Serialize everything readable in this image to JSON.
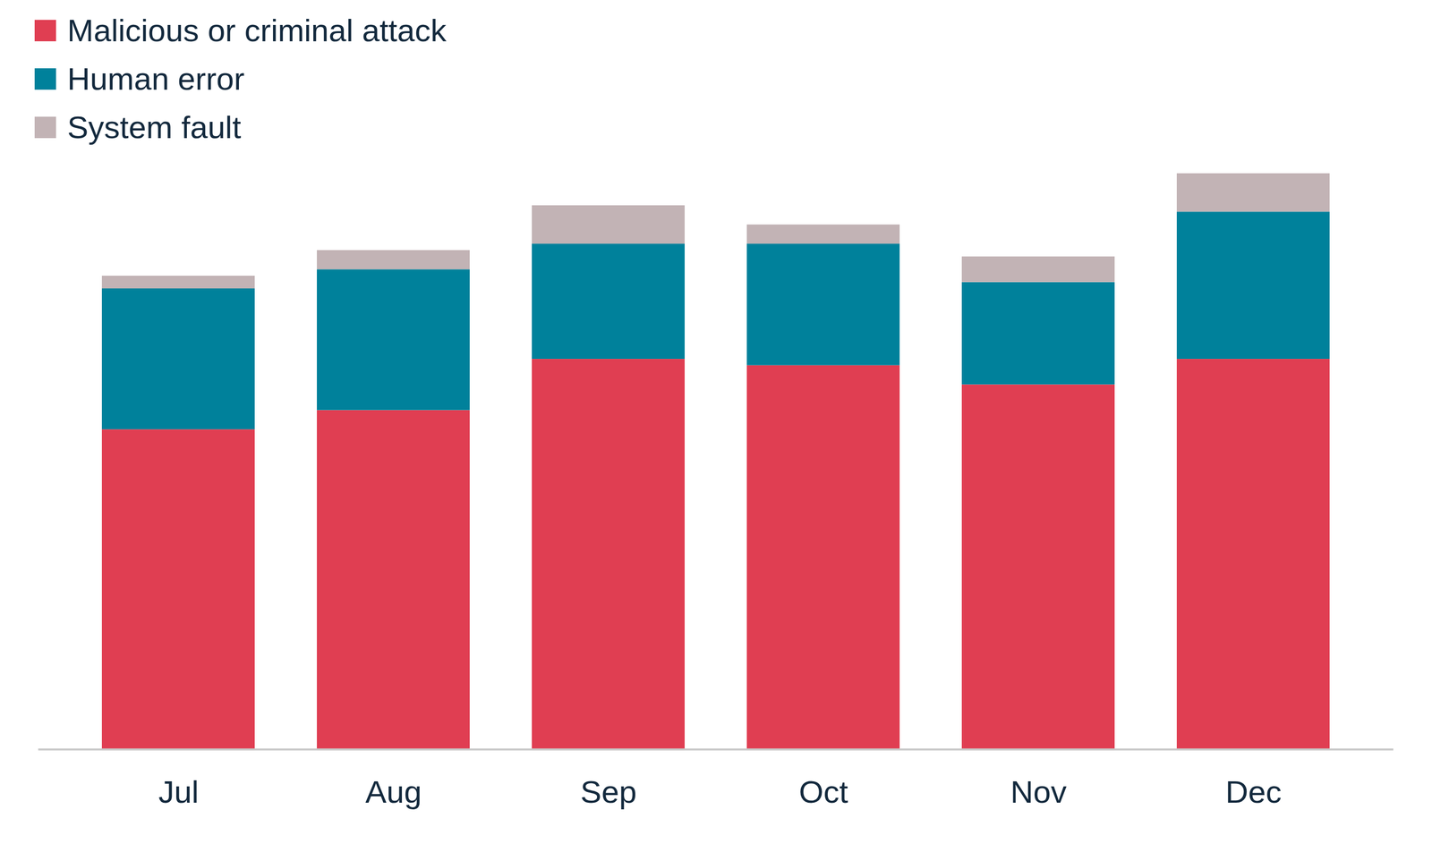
{
  "chart_data": {
    "type": "bar",
    "stacked": true,
    "legend": "top-left",
    "tick_labels": "x",
    "categories": [
      "Jul",
      "Aug",
      "Sep",
      "Oct",
      "Nov",
      "Dec"
    ],
    "series": [
      {
        "name": "Malicious or criminal attack",
        "color": "#e03e52",
        "values": [
          50,
          53,
          61,
          60,
          57,
          61
        ]
      },
      {
        "name": "Human error",
        "color": "#00819b",
        "values": [
          22,
          22,
          18,
          19,
          16,
          23
        ]
      },
      {
        "name": "System fault",
        "color": "#c2b3b5",
        "values": [
          2,
          3,
          6,
          3,
          4,
          6
        ]
      }
    ],
    "ylim": [
      0,
      90
    ]
  }
}
